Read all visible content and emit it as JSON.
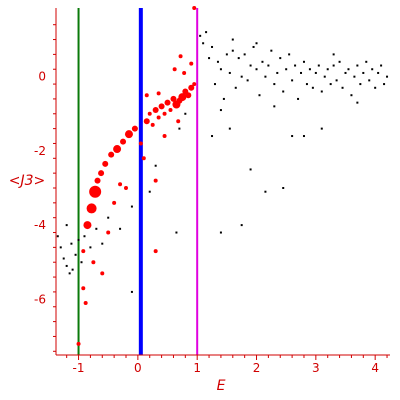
{
  "chart_data": {
    "type": "scatter",
    "title": "",
    "xlabel": "E",
    "ylabel": "<J3>",
    "xlim": [
      -1.38,
      4.25
    ],
    "ylim": [
      -7.5,
      1.85
    ],
    "grid": false,
    "legend": "none",
    "colors": {
      "axis": "#d00000",
      "tick_text": "#d00000",
      "line_green": "#0a7a0a",
      "line_blue": "#0000ff",
      "line_magenta": "#e000e0",
      "red_points": "#ff0000",
      "black_points": "#000000"
    },
    "x_ticks": [
      {
        "value": -1,
        "label": "-1"
      },
      {
        "value": 0,
        "label": "0"
      },
      {
        "value": 1,
        "label": "1"
      },
      {
        "value": 2,
        "label": "2"
      },
      {
        "value": 3,
        "label": "3"
      },
      {
        "value": 4,
        "label": "4"
      }
    ],
    "y_ticks": [
      {
        "value": 0,
        "label": "0"
      },
      {
        "value": -2,
        "label": "-2"
      },
      {
        "value": -4,
        "label": "-4"
      },
      {
        "value": -6,
        "label": "-6"
      }
    ],
    "vertical_lines": [
      {
        "x": -1.0,
        "color": "#0a7a0a",
        "width": 2
      },
      {
        "x": 0.05,
        "color": "#0000ff",
        "width": 4
      },
      {
        "x": 1.0,
        "color": "#e000e0",
        "width": 2
      }
    ],
    "series": [
      {
        "color": "#ff0000",
        "points": [
          {
            "x": -1.0,
            "y": -7.2,
            "r": 2
          },
          {
            "x": -0.92,
            "y": -5.7,
            "r": 2
          },
          {
            "x": -0.88,
            "y": -6.1,
            "r": 2
          },
          {
            "x": -0.85,
            "y": -4.0,
            "r": 4
          },
          {
            "x": -0.78,
            "y": -3.55,
            "r": 5
          },
          {
            "x": -0.72,
            "y": -3.1,
            "r": 6
          },
          {
            "x": -0.68,
            "y": -2.8,
            "r": 3
          },
          {
            "x": -0.62,
            "y": -2.6,
            "r": 3
          },
          {
            "x": -0.55,
            "y": -2.35,
            "r": 3
          },
          {
            "x": -0.45,
            "y": -2.1,
            "r": 3
          },
          {
            "x": -0.35,
            "y": -1.95,
            "r": 4
          },
          {
            "x": -0.25,
            "y": -1.75,
            "r": 3
          },
          {
            "x": -0.15,
            "y": -1.55,
            "r": 4
          },
          {
            "x": -0.05,
            "y": -1.4,
            "r": 3
          },
          {
            "x": 0.15,
            "y": -1.2,
            "r": 3
          },
          {
            "x": 0.2,
            "y": -1.0,
            "r": 2
          },
          {
            "x": 0.25,
            "y": -1.3,
            "r": 2
          },
          {
            "x": 0.3,
            "y": -0.9,
            "r": 3
          },
          {
            "x": 0.35,
            "y": -1.1,
            "r": 2
          },
          {
            "x": 0.4,
            "y": -0.8,
            "r": 3
          },
          {
            "x": 0.45,
            "y": -1.0,
            "r": 2
          },
          {
            "x": 0.5,
            "y": -0.7,
            "r": 3
          },
          {
            "x": 0.55,
            "y": -0.9,
            "r": 2
          },
          {
            "x": 0.6,
            "y": -0.6,
            "r": 3
          },
          {
            "x": 0.65,
            "y": -0.75,
            "r": 4
          },
          {
            "x": 0.7,
            "y": -0.65,
            "r": 3
          },
          {
            "x": 0.75,
            "y": -0.55,
            "r": 4
          },
          {
            "x": 0.8,
            "y": -0.4,
            "r": 3
          },
          {
            "x": 0.85,
            "y": -0.5,
            "r": 3
          },
          {
            "x": 0.9,
            "y": -0.3,
            "r": 3
          },
          {
            "x": 0.95,
            "y": -0.2,
            "r": 2
          },
          {
            "x": 0.62,
            "y": 0.2,
            "r": 2
          },
          {
            "x": 0.78,
            "y": 0.1,
            "r": 2
          },
          {
            "x": 0.9,
            "y": 0.35,
            "r": 2
          },
          {
            "x": 0.72,
            "y": 0.55,
            "r": 2
          },
          {
            "x": 0.95,
            "y": 1.85,
            "r": 2
          },
          {
            "x": 0.68,
            "y": -1.2,
            "r": 2
          },
          {
            "x": 0.05,
            "y": -1.8,
            "r": 2
          },
          {
            "x": -0.3,
            "y": -2.9,
            "r": 2
          },
          {
            "x": -0.4,
            "y": -3.4,
            "r": 2
          },
          {
            "x": -0.5,
            "y": -4.2,
            "r": 2
          },
          {
            "x": -0.2,
            "y": -3.0,
            "r": 2
          },
          {
            "x": 0.3,
            "y": -2.8,
            "r": 2
          },
          {
            "x": 0.3,
            "y": -4.7,
            "r": 2
          },
          {
            "x": -0.6,
            "y": -5.3,
            "r": 2
          },
          {
            "x": -0.75,
            "y": -5.0,
            "r": 2
          },
          {
            "x": -0.92,
            "y": -4.7,
            "r": 2
          },
          {
            "x": 0.1,
            "y": -2.2,
            "r": 2
          },
          {
            "x": 0.45,
            "y": -1.6,
            "r": 2
          },
          {
            "x": 0.15,
            "y": -0.5,
            "r": 2
          },
          {
            "x": 0.35,
            "y": -0.45,
            "r": 2
          }
        ]
      },
      {
        "color": "#000000",
        "points": [
          {
            "x": -1.35,
            "y": -4.3
          },
          {
            "x": -1.3,
            "y": -4.6
          },
          {
            "x": -1.25,
            "y": -4.9
          },
          {
            "x": -1.2,
            "y": -5.1
          },
          {
            "x": -1.15,
            "y": -5.3
          },
          {
            "x": -1.1,
            "y": -5.2
          },
          {
            "x": -1.05,
            "y": -4.8
          },
          {
            "x": -1.0,
            "y": -4.4
          },
          {
            "x": -1.2,
            "y": -4.0
          },
          {
            "x": -1.12,
            "y": -4.5
          },
          {
            "x": -0.95,
            "y": -5.0
          },
          {
            "x": -0.9,
            "y": -4.3
          },
          {
            "x": -0.8,
            "y": -4.6
          },
          {
            "x": -0.7,
            "y": -4.1
          },
          {
            "x": -0.6,
            "y": -4.5
          },
          {
            "x": -0.5,
            "y": -3.8
          },
          {
            "x": -0.3,
            "y": -4.1
          },
          {
            "x": -0.1,
            "y": -3.5
          },
          {
            "x": -0.1,
            "y": -5.8
          },
          {
            "x": 0.2,
            "y": -3.1
          },
          {
            "x": 0.3,
            "y": -2.4
          },
          {
            "x": 0.65,
            "y": -4.2
          },
          {
            "x": 0.7,
            "y": -1.4
          },
          {
            "x": 0.8,
            "y": -1.0
          },
          {
            "x": 1.05,
            "y": 1.1
          },
          {
            "x": 1.1,
            "y": 0.9
          },
          {
            "x": 1.15,
            "y": 1.2
          },
          {
            "x": 1.2,
            "y": 0.5
          },
          {
            "x": 1.25,
            "y": 0.8
          },
          {
            "x": 1.3,
            "y": -0.2
          },
          {
            "x": 1.35,
            "y": 0.4
          },
          {
            "x": 1.4,
            "y": 0.2
          },
          {
            "x": 1.45,
            "y": -0.6
          },
          {
            "x": 1.5,
            "y": 0.6
          },
          {
            "x": 1.55,
            "y": 0.1
          },
          {
            "x": 1.6,
            "y": 0.7
          },
          {
            "x": 1.65,
            "y": -0.3
          },
          {
            "x": 1.7,
            "y": 0.5
          },
          {
            "x": 1.75,
            "y": 0.0
          },
          {
            "x": 1.8,
            "y": 0.6
          },
          {
            "x": 1.85,
            "y": -0.1
          },
          {
            "x": 1.9,
            "y": 0.3
          },
          {
            "x": 1.95,
            "y": 0.8
          },
          {
            "x": 2.0,
            "y": 0.2
          },
          {
            "x": 2.05,
            "y": -0.5
          },
          {
            "x": 2.1,
            "y": 0.4
          },
          {
            "x": 2.15,
            "y": 0.0
          },
          {
            "x": 2.2,
            "y": 0.3
          },
          {
            "x": 2.25,
            "y": 0.7
          },
          {
            "x": 2.3,
            "y": -0.2
          },
          {
            "x": 2.35,
            "y": 0.1
          },
          {
            "x": 2.4,
            "y": 0.5
          },
          {
            "x": 2.45,
            "y": -0.4
          },
          {
            "x": 2.5,
            "y": 0.2
          },
          {
            "x": 2.55,
            "y": 0.6
          },
          {
            "x": 2.6,
            "y": -0.1
          },
          {
            "x": 2.65,
            "y": 0.3
          },
          {
            "x": 2.7,
            "y": -0.6
          },
          {
            "x": 2.75,
            "y": 0.1
          },
          {
            "x": 2.8,
            "y": 0.4
          },
          {
            "x": 2.85,
            "y": -0.2
          },
          {
            "x": 2.9,
            "y": 0.2
          },
          {
            "x": 2.95,
            "y": -0.3
          },
          {
            "x": 3.0,
            "y": 0.1
          },
          {
            "x": 3.05,
            "y": 0.3
          },
          {
            "x": 3.1,
            "y": -0.4
          },
          {
            "x": 3.15,
            "y": 0.0
          },
          {
            "x": 3.2,
            "y": 0.2
          },
          {
            "x": 3.25,
            "y": -0.2
          },
          {
            "x": 3.3,
            "y": 0.3
          },
          {
            "x": 3.35,
            "y": -0.1
          },
          {
            "x": 3.4,
            "y": 0.4
          },
          {
            "x": 3.45,
            "y": -0.3
          },
          {
            "x": 3.5,
            "y": 0.1
          },
          {
            "x": 3.55,
            "y": 0.2
          },
          {
            "x": 3.6,
            "y": -0.5
          },
          {
            "x": 3.65,
            "y": 0.0
          },
          {
            "x": 3.7,
            "y": 0.3
          },
          {
            "x": 3.75,
            "y": -0.2
          },
          {
            "x": 3.8,
            "y": 0.1
          },
          {
            "x": 3.85,
            "y": 0.4
          },
          {
            "x": 3.9,
            "y": -0.1
          },
          {
            "x": 3.95,
            "y": 0.2
          },
          {
            "x": 4.0,
            "y": -0.3
          },
          {
            "x": 4.05,
            "y": 0.1
          },
          {
            "x": 4.1,
            "y": 0.3
          },
          {
            "x": 4.15,
            "y": -0.2
          },
          {
            "x": 4.2,
            "y": 0.0
          },
          {
            "x": 1.25,
            "y": -1.6
          },
          {
            "x": 1.4,
            "y": -0.9
          },
          {
            "x": 1.55,
            "y": -1.4
          },
          {
            "x": 1.9,
            "y": -2.5
          },
          {
            "x": 2.15,
            "y": -3.1
          },
          {
            "x": 2.45,
            "y": -3.0
          },
          {
            "x": 2.6,
            "y": -1.6
          },
          {
            "x": 2.8,
            "y": -1.6
          },
          {
            "x": 3.1,
            "y": -1.4
          },
          {
            "x": 1.75,
            "y": -4.0
          },
          {
            "x": 1.4,
            "y": -4.2
          },
          {
            "x": 2.3,
            "y": -0.8
          },
          {
            "x": 3.7,
            "y": -0.7
          },
          {
            "x": 2.0,
            "y": 0.9
          },
          {
            "x": 1.6,
            "y": 1.0
          },
          {
            "x": 3.3,
            "y": 0.6
          }
        ]
      }
    ]
  }
}
